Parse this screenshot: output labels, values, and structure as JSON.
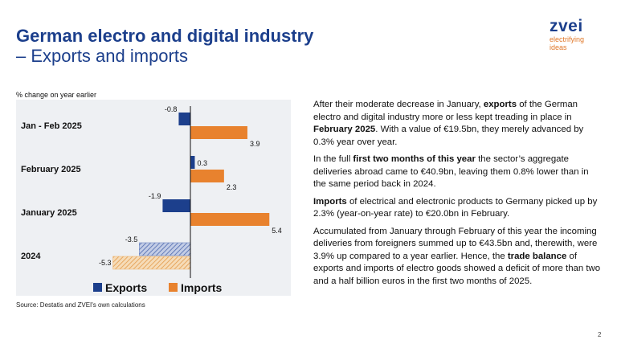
{
  "slide": {
    "title_line1": "German electro and digital industry",
    "title_line2": "– Exports and imports",
    "page_number": "2",
    "source": "Source: Destatis and ZVEI's own calculations"
  },
  "logo": {
    "brand": "zvei",
    "tagline_1": "electrifying",
    "tagline_2": "ideas"
  },
  "chart_data": {
    "type": "bar",
    "orientation": "horizontal",
    "ylabel": "% change on year earlier",
    "categories": [
      "Jan - Feb 2025",
      "February 2025",
      "January 2025",
      "2024"
    ],
    "series": [
      {
        "name": "Exports",
        "values": [
          -0.8,
          0.3,
          -1.9,
          -3.5
        ],
        "color": "#1c3f8c",
        "hatched_color": "#6f89c4"
      },
      {
        "name": "Imports",
        "values": [
          3.9,
          2.3,
          5.4,
          -5.3
        ],
        "color": "#e8822e",
        "hatched_color": "#efbb7a"
      }
    ],
    "hatched_categories": [
      "2024"
    ],
    "xlim": [
      -6,
      6.5
    ],
    "grid": false,
    "legend_position": "bottom"
  },
  "text": {
    "p1_a": "After their moderate decrease in January, ",
    "p1_b": "exports",
    "p1_c": " of the German electro and digital industry more or less kept treading in place in ",
    "p1_d": "February 2025",
    "p1_e": ". With a value of €19.5bn, they merely advanced by 0.3% year over year.",
    "p2_a": "In the full ",
    "p2_b": "first two months of this year",
    "p2_c": " the sector’s aggregate deliveries abroad came to €40.9bn, leaving them 0.8% lower than in the same period back in 2024.",
    "p3_a": "Imports",
    "p3_b": " of electrical and electronic products to Germany picked up by 2.3% (year-on-year rate) to €20.0bn in February.",
    "p4_a": "Accumulated from January through February of this year the incoming deliveries from foreigners summed up to €43.5bn and, therewith, were 3.9% up compared to a year earlier. Hence, the ",
    "p4_b": "trade balance",
    "p4_c": " of exports and imports of electro goods showed a deficit of more than two and a half billion euros in the first two months of 2025."
  }
}
